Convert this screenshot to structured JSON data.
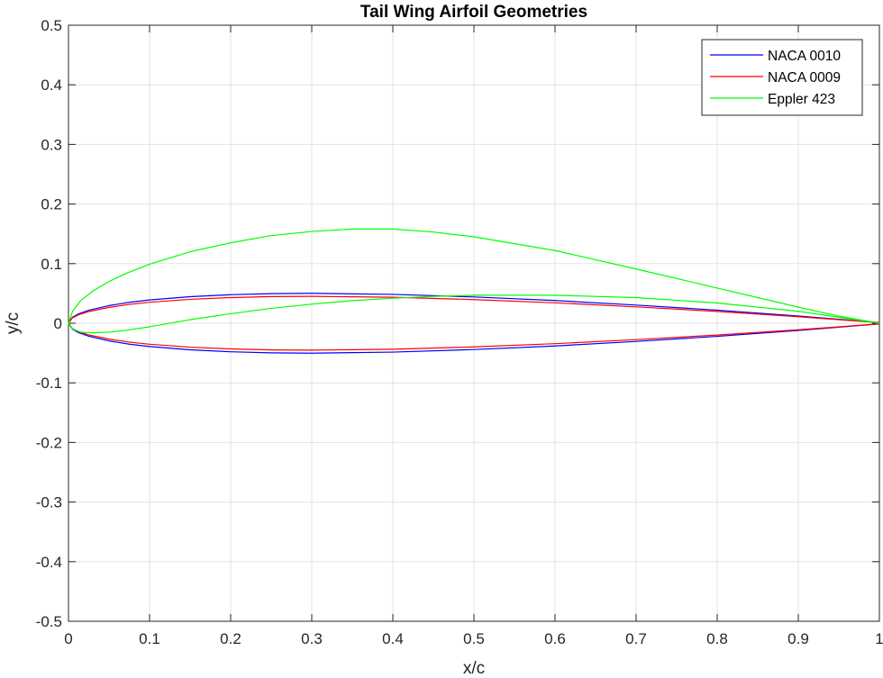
{
  "chart_data": {
    "type": "line",
    "title": "Tail Wing Airfoil Geometries",
    "xlabel": "x/c",
    "ylabel": "y/c",
    "xlim": [
      0,
      1
    ],
    "ylim": [
      -0.5,
      0.5
    ],
    "xticks": [
      0,
      0.1,
      0.2,
      0.3,
      0.4,
      0.5,
      0.6,
      0.7,
      0.8,
      0.9,
      1
    ],
    "xtick_labels": [
      "0",
      "0.1",
      "0.2",
      "0.3",
      "0.4",
      "0.5",
      "0.6",
      "0.7",
      "0.8",
      "0.9",
      "1"
    ],
    "yticks": [
      -0.5,
      -0.4,
      -0.3,
      -0.2,
      -0.1,
      0,
      0.1,
      0.2,
      0.3,
      0.4,
      0.5
    ],
    "ytick_labels": [
      "-0.5",
      "-0.4",
      "-0.3",
      "-0.2",
      "-0.1",
      "0",
      "0.1",
      "0.2",
      "0.3",
      "0.4",
      "0.5"
    ],
    "grid": true,
    "legend_position": "top-right",
    "series": [
      {
        "name": "NACA 0010",
        "color": "#0000ff",
        "x": [
          1,
          0.95,
          0.9,
          0.8,
          0.7,
          0.6,
          0.5,
          0.4,
          0.3,
          0.25,
          0.2,
          0.15,
          0.1,
          0.075,
          0.05,
          0.025,
          0.0125,
          0.005,
          0,
          0.005,
          0.0125,
          0.025,
          0.05,
          0.075,
          0.1,
          0.15,
          0.2,
          0.25,
          0.3,
          0.4,
          0.5,
          0.6,
          0.7,
          0.8,
          0.9,
          0.95,
          1
        ],
        "y": [
          0.0011,
          0.0067,
          0.0121,
          0.022,
          0.0305,
          0.0381,
          0.0441,
          0.0484,
          0.0502,
          0.0497,
          0.0479,
          0.0446,
          0.0391,
          0.0351,
          0.0296,
          0.0218,
          0.0158,
          0.0102,
          0,
          -0.0102,
          -0.0158,
          -0.0218,
          -0.0296,
          -0.0351,
          -0.0391,
          -0.0446,
          -0.0479,
          -0.0497,
          -0.0502,
          -0.0484,
          -0.0441,
          -0.0381,
          -0.0305,
          -0.022,
          -0.0121,
          -0.0067,
          -0.0011
        ]
      },
      {
        "name": "NACA 0009",
        "color": "#ff0000",
        "x": [
          1,
          0.95,
          0.9,
          0.8,
          0.7,
          0.6,
          0.5,
          0.4,
          0.3,
          0.25,
          0.2,
          0.15,
          0.1,
          0.075,
          0.05,
          0.025,
          0.0125,
          0.005,
          0,
          0.005,
          0.0125,
          0.025,
          0.05,
          0.075,
          0.1,
          0.15,
          0.2,
          0.25,
          0.3,
          0.4,
          0.5,
          0.6,
          0.7,
          0.8,
          0.9,
          0.95,
          1
        ],
        "y": [
          0.0009,
          0.006,
          0.0109,
          0.0198,
          0.0275,
          0.0343,
          0.0397,
          0.0436,
          0.0451,
          0.0448,
          0.0431,
          0.0401,
          0.0352,
          0.0316,
          0.0266,
          0.0196,
          0.0142,
          0.0092,
          0,
          -0.0092,
          -0.0142,
          -0.0196,
          -0.0266,
          -0.0316,
          -0.0352,
          -0.0401,
          -0.0431,
          -0.0448,
          -0.0451,
          -0.0436,
          -0.0397,
          -0.0343,
          -0.0275,
          -0.0198,
          -0.0109,
          -0.006,
          -0.0009
        ]
      },
      {
        "name": "Eppler 423",
        "color": "#00ff00",
        "x": [
          1,
          0.95,
          0.9,
          0.8,
          0.7,
          0.6,
          0.5,
          0.45,
          0.4,
          0.35,
          0.3,
          0.25,
          0.2,
          0.15,
          0.1,
          0.07,
          0.05,
          0.03,
          0.015,
          0.005,
          0,
          0.005,
          0.015,
          0.03,
          0.05,
          0.07,
          0.1,
          0.15,
          0.2,
          0.25,
          0.3,
          0.35,
          0.4,
          0.45,
          0.5,
          0.6,
          0.7,
          0.8,
          0.9,
          0.95,
          1
        ],
        "y": [
          0.0,
          0.012,
          0.027,
          0.059,
          0.091,
          0.122,
          0.145,
          0.153,
          0.158,
          0.158,
          0.154,
          0.147,
          0.135,
          0.12,
          0.099,
          0.083,
          0.07,
          0.054,
          0.038,
          0.02,
          0.0,
          -0.01,
          -0.015,
          -0.016,
          -0.015,
          -0.012,
          -0.006,
          0.006,
          0.016,
          0.025,
          0.032,
          0.038,
          0.042,
          0.045,
          0.047,
          0.047,
          0.043,
          0.034,
          0.02,
          0.01,
          0.0
        ]
      }
    ]
  }
}
